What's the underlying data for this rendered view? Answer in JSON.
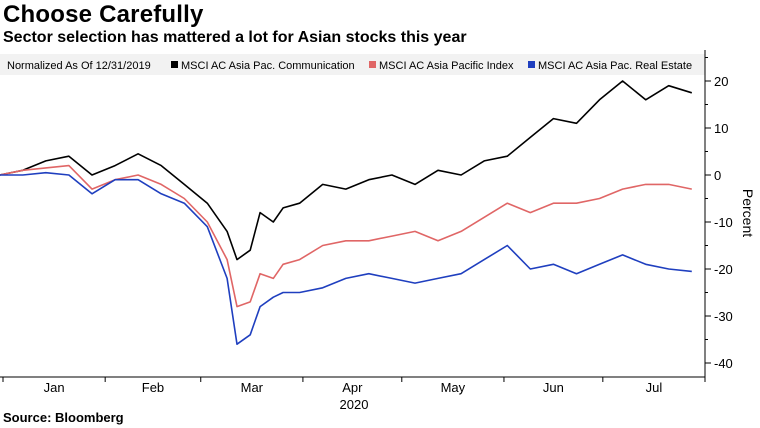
{
  "header": {
    "title": "Choose Carefully",
    "subtitle": "Sector selection has mattered a lot for Asian stocks this year"
  },
  "footer": {
    "source": "Source: Bloomberg"
  },
  "chart_data": {
    "type": "line",
    "title": "Choose Carefully",
    "subtitle": "Sector selection has mattered a lot for Asian stocks this year",
    "note": "Normalized As Of 12/31/2019",
    "ylabel": "Percent",
    "xlabel": "",
    "year_label": "2020",
    "x_ticks": [
      "Jan",
      "Feb",
      "Mar",
      "Apr",
      "May",
      "Jun",
      "Jul"
    ],
    "ylim": [
      -42,
      27
    ],
    "y_ticks": [
      20,
      10,
      0,
      -10,
      -20,
      -30,
      -40
    ],
    "grid": false,
    "legend_position": "top",
    "x": [
      "2019-12-31",
      "2020-01-07",
      "2020-01-14",
      "2020-01-21",
      "2020-01-28",
      "2020-02-04",
      "2020-02-11",
      "2020-02-18",
      "2020-02-25",
      "2020-03-03",
      "2020-03-09",
      "2020-03-12",
      "2020-03-16",
      "2020-03-19",
      "2020-03-23",
      "2020-03-26",
      "2020-03-31",
      "2020-04-07",
      "2020-04-14",
      "2020-04-21",
      "2020-04-28",
      "2020-05-05",
      "2020-05-12",
      "2020-05-19",
      "2020-05-26",
      "2020-06-02",
      "2020-06-09",
      "2020-06-16",
      "2020-06-23",
      "2020-06-30",
      "2020-07-07",
      "2020-07-14",
      "2020-07-21",
      "2020-07-28"
    ],
    "series": [
      {
        "name": "MSCI AC Asia Pac. Communication",
        "color": "#000000",
        "values": [
          0,
          1,
          3,
          4,
          0,
          2,
          4.5,
          2,
          -2,
          -6,
          -12,
          -18,
          -16,
          -8,
          -10,
          -7,
          -6,
          -2,
          -3,
          -1,
          0,
          -2,
          1,
          0,
          3,
          4,
          8,
          12,
          11,
          16,
          20,
          16,
          19,
          17.5
        ]
      },
      {
        "name": "MSCI AC Asia Pacific Index",
        "color": "#e06666",
        "values": [
          0,
          1,
          1.5,
          2,
          -3,
          -1,
          0,
          -2,
          -5,
          -10,
          -18,
          -28,
          -27,
          -21,
          -22,
          -19,
          -18,
          -15,
          -14,
          -14,
          -13,
          -12,
          -14,
          -12,
          -9,
          -6,
          -8,
          -6,
          -6,
          -5,
          -3,
          -2,
          -2,
          -3
        ]
      },
      {
        "name": "MSCI AC Asia Pac. Real Estate",
        "color": "#1f3fbf",
        "values": [
          0,
          0,
          0.5,
          0,
          -4,
          -1,
          -1,
          -4,
          -6,
          -11,
          -22,
          -36,
          -34,
          -28,
          -26,
          -25,
          -25,
          -24,
          -22,
          -21,
          -22,
          -23,
          -22,
          -21,
          -18,
          -15,
          -20,
          -19,
          -21,
          -19,
          -17,
          -19,
          -20,
          -20.5
        ]
      }
    ]
  }
}
